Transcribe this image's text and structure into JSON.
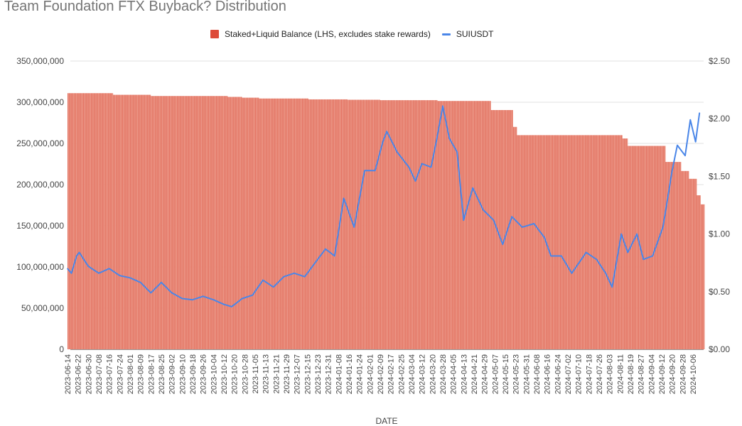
{
  "chart_data": {
    "type": "bar+line",
    "title": "Team Foundation FTX Buyback? Distribution",
    "xlabel": "DATE",
    "ylabel_left": "",
    "ylabel_right": "",
    "legend_position": "top",
    "grid": true,
    "ylim_left": [
      0,
      350000000
    ],
    "ylim_right": [
      0,
      2.5
    ],
    "left_ticks": [
      "0",
      "50,000,000",
      "100,000,000",
      "150,000,000",
      "200,000,000",
      "250,000,000",
      "300,000,000",
      "350,000,000"
    ],
    "right_ticks": [
      "$0.00",
      "$0.50",
      "$1.00",
      "$1.50",
      "$2.00",
      "$2.50"
    ],
    "x_start": "2023-06-14",
    "x_end": "2024-10-14",
    "x_tick_step_days": 8,
    "x_tick_first": "2023-06-14",
    "x_tick_last": "2024-10-06",
    "colors": {
      "bar_fill": "#f0a394",
      "bar_edge": "#d9533f",
      "line": "#4a86e8",
      "grid": "#e0e0e0"
    },
    "series": [
      {
        "name": "Staked+Liquid Balance (LHS, excludes stake rewards)",
        "type": "bar",
        "axis": "left",
        "steps": [
          [
            "2023-06-14",
            311000000
          ],
          [
            "2023-07-19",
            309000000
          ],
          [
            "2023-08-17",
            307500000
          ],
          [
            "2023-10-15",
            306500000
          ],
          [
            "2023-10-26",
            305500000
          ],
          [
            "2023-11-08",
            304500000
          ],
          [
            "2023-12-16",
            303500000
          ],
          [
            "2024-01-15",
            303000000
          ],
          [
            "2024-02-09",
            302500000
          ],
          [
            "2024-03-24",
            301500000
          ],
          [
            "2024-05-04",
            290500000
          ],
          [
            "2024-05-21",
            270000000
          ],
          [
            "2024-05-24",
            260000000
          ],
          [
            "2024-08-13",
            256000000
          ],
          [
            "2024-08-17",
            247000000
          ],
          [
            "2024-09-15",
            227500000
          ],
          [
            "2024-09-27",
            216500000
          ],
          [
            "2024-10-03",
            207000000
          ],
          [
            "2024-10-09",
            187000000
          ],
          [
            "2024-10-12",
            176000000
          ]
        ]
      },
      {
        "name": "SUIUSDT",
        "type": "line",
        "axis": "right",
        "points": [
          [
            "2023-06-14",
            0.7
          ],
          [
            "2023-06-17",
            0.66
          ],
          [
            "2023-06-21",
            0.81
          ],
          [
            "2023-06-23",
            0.84
          ],
          [
            "2023-06-30",
            0.72
          ],
          [
            "2023-07-08",
            0.66
          ],
          [
            "2023-07-16",
            0.7
          ],
          [
            "2023-07-24",
            0.64
          ],
          [
            "2023-08-01",
            0.62
          ],
          [
            "2023-08-09",
            0.58
          ],
          [
            "2023-08-17",
            0.49
          ],
          [
            "2023-08-25",
            0.58
          ],
          [
            "2023-09-02",
            0.49
          ],
          [
            "2023-09-10",
            0.44
          ],
          [
            "2023-09-18",
            0.43
          ],
          [
            "2023-09-26",
            0.46
          ],
          [
            "2023-10-04",
            0.43
          ],
          [
            "2023-10-12",
            0.39
          ],
          [
            "2023-10-18",
            0.37
          ],
          [
            "2023-10-26",
            0.44
          ],
          [
            "2023-11-03",
            0.47
          ],
          [
            "2023-11-11",
            0.6
          ],
          [
            "2023-11-19",
            0.54
          ],
          [
            "2023-11-27",
            0.63
          ],
          [
            "2023-12-05",
            0.66
          ],
          [
            "2023-12-13",
            0.63
          ],
          [
            "2023-12-21",
            0.75
          ],
          [
            "2023-12-29",
            0.87
          ],
          [
            "2024-01-05",
            0.81
          ],
          [
            "2024-01-12",
            1.31
          ],
          [
            "2024-01-18",
            1.12
          ],
          [
            "2024-01-20",
            1.06
          ],
          [
            "2024-01-28",
            1.55
          ],
          [
            "2024-02-05",
            1.55
          ],
          [
            "2024-02-11",
            1.8
          ],
          [
            "2024-02-14",
            1.89
          ],
          [
            "2024-02-22",
            1.71
          ],
          [
            "2024-03-02",
            1.58
          ],
          [
            "2024-03-07",
            1.46
          ],
          [
            "2024-03-12",
            1.61
          ],
          [
            "2024-03-19",
            1.58
          ],
          [
            "2024-03-23",
            1.8
          ],
          [
            "2024-03-28",
            2.11
          ],
          [
            "2024-04-02",
            1.83
          ],
          [
            "2024-04-08",
            1.71
          ],
          [
            "2024-04-13",
            1.12
          ],
          [
            "2024-04-20",
            1.4
          ],
          [
            "2024-04-28",
            1.21
          ],
          [
            "2024-05-06",
            1.12
          ],
          [
            "2024-05-13",
            0.91
          ],
          [
            "2024-05-20",
            1.15
          ],
          [
            "2024-05-28",
            1.06
          ],
          [
            "2024-06-06",
            1.09
          ],
          [
            "2024-06-14",
            0.97
          ],
          [
            "2024-06-19",
            0.81
          ],
          [
            "2024-06-27",
            0.81
          ],
          [
            "2024-07-05",
            0.66
          ],
          [
            "2024-07-16",
            0.84
          ],
          [
            "2024-07-24",
            0.78
          ],
          [
            "2024-07-31",
            0.66
          ],
          [
            "2024-08-05",
            0.54
          ],
          [
            "2024-08-12",
            1.0
          ],
          [
            "2024-08-17",
            0.84
          ],
          [
            "2024-08-24",
            1.0
          ],
          [
            "2024-08-29",
            0.78
          ],
          [
            "2024-09-05",
            0.81
          ],
          [
            "2024-09-13",
            1.06
          ],
          [
            "2024-09-20",
            1.55
          ],
          [
            "2024-09-24",
            1.77
          ],
          [
            "2024-09-30",
            1.68
          ],
          [
            "2024-10-04",
            1.99
          ],
          [
            "2024-10-08",
            1.8
          ],
          [
            "2024-10-11",
            2.05
          ]
        ]
      }
    ]
  }
}
